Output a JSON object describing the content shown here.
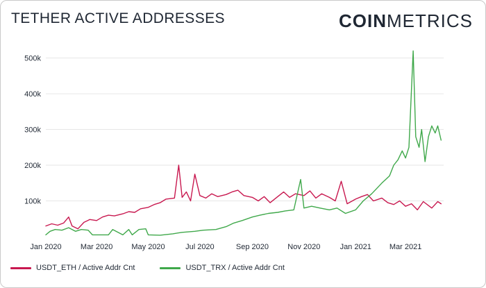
{
  "header": {
    "title": "TETHER ACTIVE ADDRESSES",
    "brand_bold": "COIN",
    "brand_light": "METRICS"
  },
  "chart_data": {
    "type": "line",
    "title": "TETHER ACTIVE ADDRESSES",
    "xlabel": "",
    "ylabel": "",
    "ylim": [
      0,
      540000
    ],
    "xlim": [
      "2020-01-01",
      "2021-04-15"
    ],
    "y_ticks": [
      100000,
      200000,
      300000,
      400000,
      500000
    ],
    "y_tick_labels": [
      "100k",
      "200k",
      "300k",
      "400k",
      "500k"
    ],
    "x_ticks": [
      "2020-01-01",
      "2020-03-01",
      "2020-05-01",
      "2020-07-01",
      "2020-09-01",
      "2020-11-01",
      "2021-01-01",
      "2021-03-01"
    ],
    "x_tick_labels": [
      "Jan 2020",
      "Mar 2020",
      "May 2020",
      "Jul 2020",
      "Sep 2020",
      "Nov 2020",
      "Jan 2021",
      "Mar 2021"
    ],
    "grid": "horizontal",
    "legend_position": "bottom-left",
    "series": [
      {
        "name": "USDT_ETH / Active Addr Cnt",
        "color": "#c8184f",
        "points": [
          [
            "2020-01-01",
            30000
          ],
          [
            "2020-01-08",
            36000
          ],
          [
            "2020-01-15",
            32000
          ],
          [
            "2020-01-22",
            38000
          ],
          [
            "2020-01-28",
            55000
          ],
          [
            "2020-02-01",
            30000
          ],
          [
            "2020-02-08",
            22000
          ],
          [
            "2020-02-15",
            40000
          ],
          [
            "2020-02-22",
            48000
          ],
          [
            "2020-03-01",
            45000
          ],
          [
            "2020-03-08",
            55000
          ],
          [
            "2020-03-15",
            60000
          ],
          [
            "2020-03-22",
            58000
          ],
          [
            "2020-04-01",
            64000
          ],
          [
            "2020-04-08",
            70000
          ],
          [
            "2020-04-15",
            68000
          ],
          [
            "2020-04-22",
            78000
          ],
          [
            "2020-05-01",
            82000
          ],
          [
            "2020-05-08",
            90000
          ],
          [
            "2020-05-15",
            95000
          ],
          [
            "2020-05-22",
            105000
          ],
          [
            "2020-06-01",
            108000
          ],
          [
            "2020-06-06",
            200000
          ],
          [
            "2020-06-10",
            110000
          ],
          [
            "2020-06-15",
            125000
          ],
          [
            "2020-06-20",
            100000
          ],
          [
            "2020-06-25",
            175000
          ],
          [
            "2020-07-01",
            115000
          ],
          [
            "2020-07-08",
            108000
          ],
          [
            "2020-07-15",
            120000
          ],
          [
            "2020-07-22",
            112000
          ],
          [
            "2020-08-01",
            118000
          ],
          [
            "2020-08-08",
            125000
          ],
          [
            "2020-08-15",
            130000
          ],
          [
            "2020-08-22",
            115000
          ],
          [
            "2020-09-01",
            110000
          ],
          [
            "2020-09-08",
            100000
          ],
          [
            "2020-09-15",
            112000
          ],
          [
            "2020-09-22",
            95000
          ],
          [
            "2020-10-01",
            112000
          ],
          [
            "2020-10-08",
            125000
          ],
          [
            "2020-10-15",
            110000
          ],
          [
            "2020-10-22",
            120000
          ],
          [
            "2020-11-01",
            115000
          ],
          [
            "2020-11-08",
            128000
          ],
          [
            "2020-11-15",
            108000
          ],
          [
            "2020-11-22",
            120000
          ],
          [
            "2020-12-01",
            110000
          ],
          [
            "2020-12-08",
            100000
          ],
          [
            "2020-12-15",
            155000
          ],
          [
            "2020-12-22",
            92000
          ],
          [
            "2021-01-01",
            105000
          ],
          [
            "2021-01-08",
            112000
          ],
          [
            "2021-01-15",
            118000
          ],
          [
            "2021-01-22",
            100000
          ],
          [
            "2021-02-01",
            108000
          ],
          [
            "2021-02-08",
            95000
          ],
          [
            "2021-02-15",
            90000
          ],
          [
            "2021-02-22",
            100000
          ],
          [
            "2021-03-01",
            85000
          ],
          [
            "2021-03-08",
            92000
          ],
          [
            "2021-03-15",
            75000
          ],
          [
            "2021-03-22",
            98000
          ],
          [
            "2021-04-01",
            80000
          ],
          [
            "2021-04-08",
            98000
          ],
          [
            "2021-04-12",
            92000
          ]
        ]
      },
      {
        "name": "USDT_TRX / Active Addr Cnt",
        "color": "#3fa84a",
        "points": [
          [
            "2020-01-01",
            5000
          ],
          [
            "2020-01-06",
            15000
          ],
          [
            "2020-01-12",
            20000
          ],
          [
            "2020-01-20",
            18000
          ],
          [
            "2020-01-28",
            25000
          ],
          [
            "2020-02-05",
            15000
          ],
          [
            "2020-02-12",
            20000
          ],
          [
            "2020-02-20",
            18000
          ],
          [
            "2020-02-25",
            5000
          ],
          [
            "2020-03-01",
            5000
          ],
          [
            "2020-03-15",
            5000
          ],
          [
            "2020-03-20",
            20000
          ],
          [
            "2020-04-01",
            5000
          ],
          [
            "2020-04-08",
            20000
          ],
          [
            "2020-04-12",
            5000
          ],
          [
            "2020-04-20",
            20000
          ],
          [
            "2020-04-28",
            22000
          ],
          [
            "2020-05-01",
            5000
          ],
          [
            "2020-05-15",
            4000
          ],
          [
            "2020-05-30",
            8000
          ],
          [
            "2020-06-10",
            12000
          ],
          [
            "2020-06-25",
            15000
          ],
          [
            "2020-07-05",
            18000
          ],
          [
            "2020-07-20",
            20000
          ],
          [
            "2020-08-01",
            28000
          ],
          [
            "2020-08-10",
            38000
          ],
          [
            "2020-08-20",
            45000
          ],
          [
            "2020-09-01",
            55000
          ],
          [
            "2020-09-10",
            60000
          ],
          [
            "2020-09-20",
            65000
          ],
          [
            "2020-10-01",
            68000
          ],
          [
            "2020-10-10",
            72000
          ],
          [
            "2020-10-20",
            75000
          ],
          [
            "2020-10-28",
            160000
          ],
          [
            "2020-11-01",
            80000
          ],
          [
            "2020-11-10",
            85000
          ],
          [
            "2020-11-20",
            80000
          ],
          [
            "2020-12-01",
            75000
          ],
          [
            "2020-12-10",
            80000
          ],
          [
            "2020-12-20",
            65000
          ],
          [
            "2021-01-01",
            75000
          ],
          [
            "2021-01-10",
            100000
          ],
          [
            "2021-01-20",
            120000
          ],
          [
            "2021-02-01",
            150000
          ],
          [
            "2021-02-10",
            170000
          ],
          [
            "2021-02-15",
            200000
          ],
          [
            "2021-02-20",
            215000
          ],
          [
            "2021-02-25",
            240000
          ],
          [
            "2021-03-01",
            220000
          ],
          [
            "2021-03-05",
            250000
          ],
          [
            "2021-03-10",
            520000
          ],
          [
            "2021-03-13",
            280000
          ],
          [
            "2021-03-17",
            250000
          ],
          [
            "2021-03-20",
            300000
          ],
          [
            "2021-03-24",
            210000
          ],
          [
            "2021-03-28",
            280000
          ],
          [
            "2021-04-01",
            310000
          ],
          [
            "2021-04-05",
            290000
          ],
          [
            "2021-04-08",
            310000
          ],
          [
            "2021-04-12",
            270000
          ]
        ]
      }
    ]
  }
}
